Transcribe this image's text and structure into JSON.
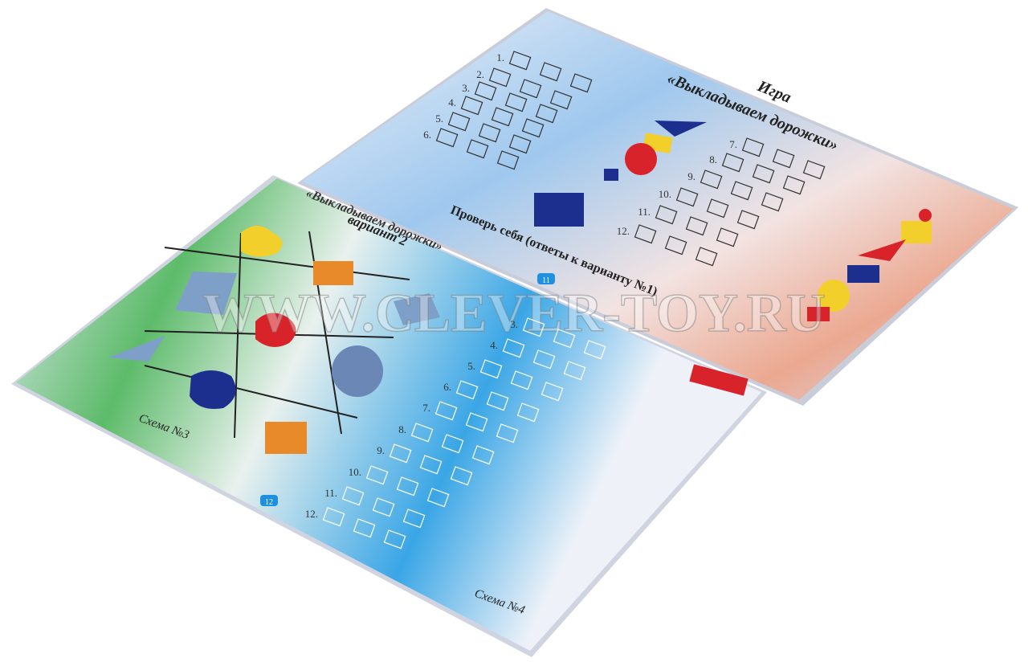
{
  "top_page": {
    "heading": "Игра",
    "title": "«Выкладываем дорожки»",
    "check": "Проверь себя (ответы к варианту №1)",
    "page_number": "11",
    "rows": [
      "1.",
      "2.",
      "3.",
      "4.",
      "5.",
      "6.",
      "7.",
      "8.",
      "9.",
      "10.",
      "11.",
      "12."
    ]
  },
  "bottom_page": {
    "title": "«Выкладываем дорожки»",
    "subtitle": "вариант 2",
    "scheme_left": "Схема №3",
    "scheme_right": "Схема №4",
    "page_number": "12",
    "rows": [
      "3.",
      "4.",
      "5.",
      "6.",
      "7.",
      "8.",
      "9.",
      "10.",
      "11.",
      "12."
    ]
  },
  "watermark": "WWW.CLEVER-TOY.RU"
}
